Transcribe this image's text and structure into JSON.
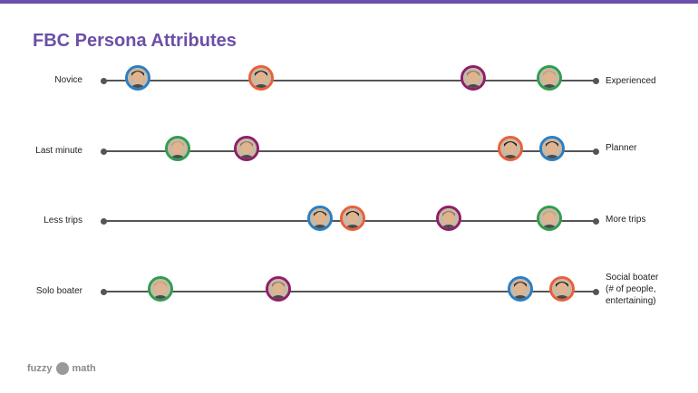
{
  "title": "FBC Persona Attributes",
  "colors": {
    "accent": "#6b4fa8",
    "blue": "#2b7ec3",
    "orange": "#e8603c",
    "purple": "#8e1f6b",
    "green": "#2f9e4f"
  },
  "rows": [
    {
      "left_label": "Novice",
      "right_label": [
        "Experienced"
      ],
      "avatars": [
        {
          "persona": "blue",
          "position": 0.07
        },
        {
          "persona": "orange",
          "position": 0.32
        },
        {
          "persona": "purple",
          "position": 0.75
        },
        {
          "persona": "green",
          "position": 0.905
        }
      ]
    },
    {
      "left_label": "Last minute",
      "right_label": [
        "Planner"
      ],
      "avatars": [
        {
          "persona": "green",
          "position": 0.15
        },
        {
          "persona": "purple",
          "position": 0.29
        },
        {
          "persona": "orange",
          "position": 0.825
        },
        {
          "persona": "blue",
          "position": 0.91
        }
      ]
    },
    {
      "left_label": "Less trips",
      "right_label": [
        "More trips"
      ],
      "avatars": [
        {
          "persona": "blue",
          "position": 0.44
        },
        {
          "persona": "orange",
          "position": 0.505
        },
        {
          "persona": "purple",
          "position": 0.7
        },
        {
          "persona": "green",
          "position": 0.905
        }
      ]
    },
    {
      "left_label": "Solo boater",
      "right_label": [
        "Social boater",
        "(# of people,",
        "entertaining)"
      ],
      "avatars": [
        {
          "persona": "green",
          "position": 0.115
        },
        {
          "persona": "purple",
          "position": 0.355
        },
        {
          "persona": "blue",
          "position": 0.845
        },
        {
          "persona": "orange",
          "position": 0.93
        }
      ]
    }
  ],
  "footer": {
    "logo_left": "fuzzy",
    "logo_right": "math"
  }
}
